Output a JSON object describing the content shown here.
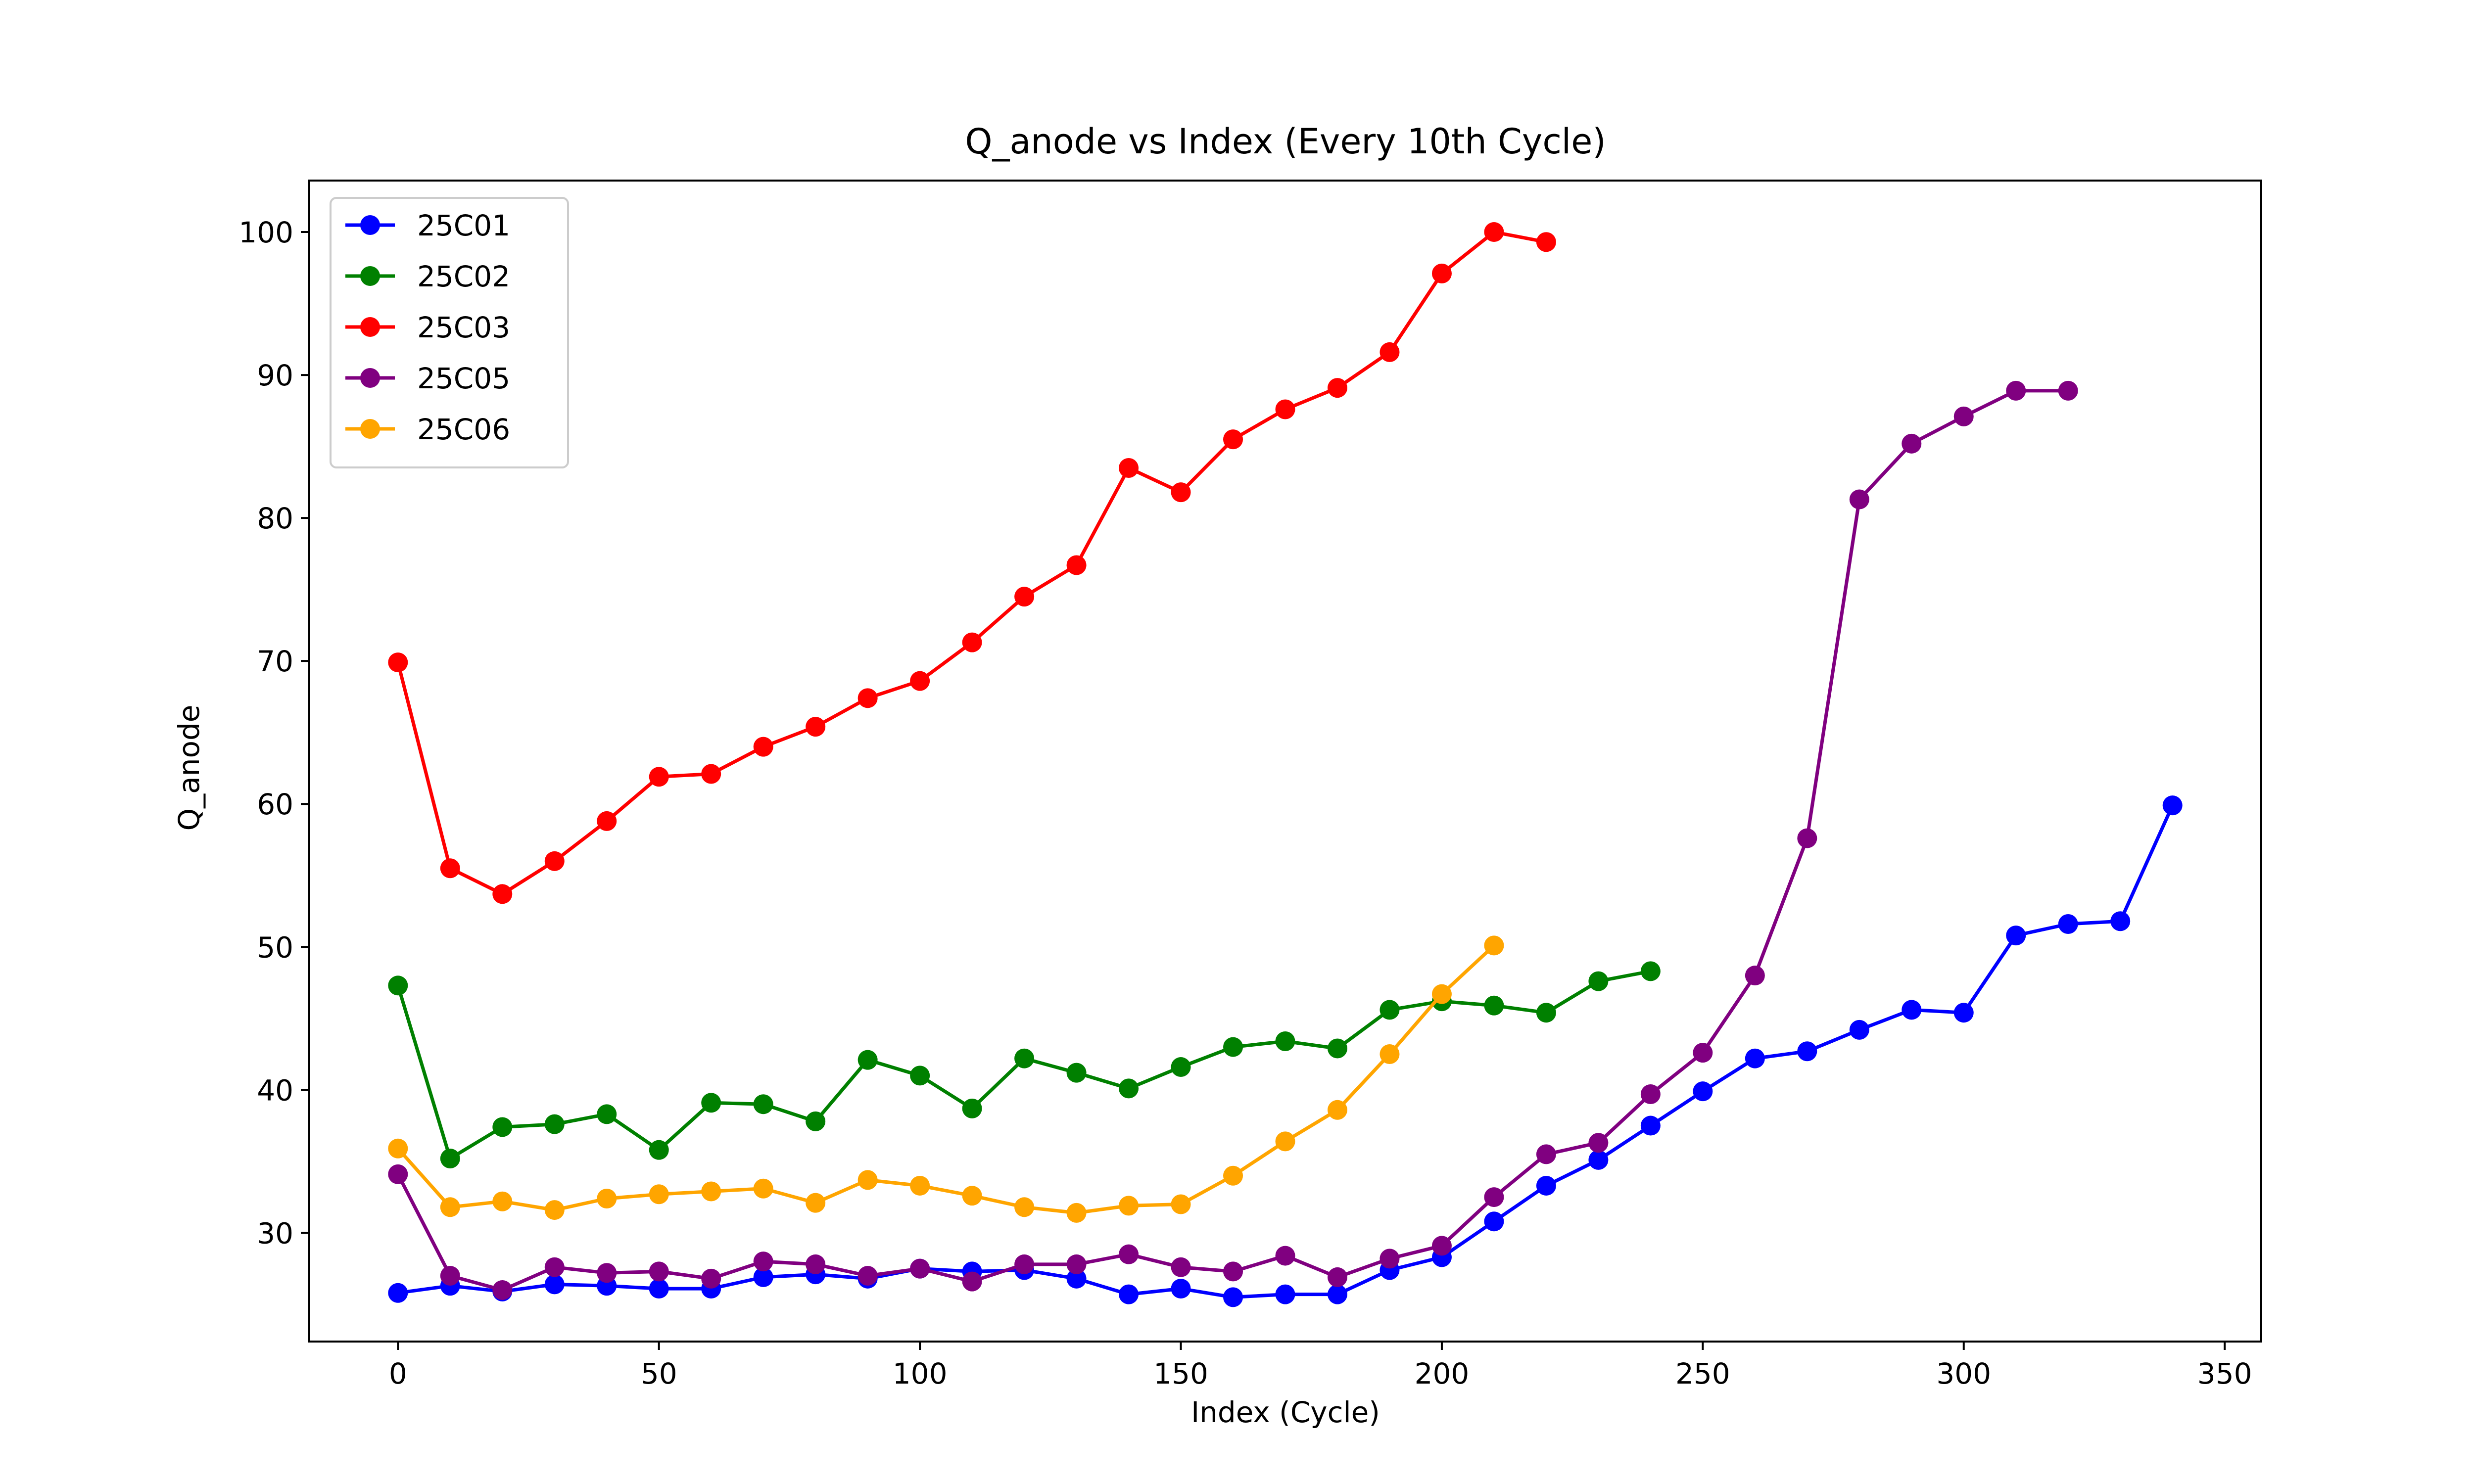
{
  "chart_data": {
    "type": "line",
    "title": "Q_anode vs Index (Every 10th Cycle)",
    "xlabel": "Index (Cycle)",
    "ylabel": "Q_anode",
    "xlim": [
      -17,
      357
    ],
    "ylim": [
      22.4,
      103.6
    ],
    "xticks": [
      0,
      50,
      100,
      150,
      200,
      250,
      300,
      350
    ],
    "yticks": [
      30,
      40,
      50,
      60,
      70,
      80,
      90,
      100
    ],
    "grid": false,
    "legend_position": "top-left",
    "series": [
      {
        "name": "25C01",
        "color": "#0000ff",
        "x": [
          0,
          10,
          20,
          30,
          40,
          50,
          60,
          70,
          80,
          90,
          100,
          110,
          120,
          130,
          140,
          150,
          160,
          170,
          180,
          190,
          200,
          210,
          220,
          230,
          240,
          250,
          260,
          270,
          280,
          290,
          300,
          310,
          320,
          330,
          340
        ],
        "y": [
          25.8,
          26.3,
          25.9,
          26.4,
          26.3,
          26.1,
          26.1,
          26.9,
          27.1,
          26.8,
          27.5,
          27.3,
          27.4,
          26.8,
          25.7,
          26.1,
          25.5,
          25.7,
          25.7,
          27.4,
          28.3,
          30.8,
          33.3,
          35.1,
          37.5,
          39.9,
          42.2,
          42.7,
          44.2,
          45.6,
          45.4,
          50.8,
          51.6,
          51.8,
          59.9
        ]
      },
      {
        "name": "25C02",
        "color": "#008000",
        "x": [
          0,
          10,
          20,
          30,
          40,
          50,
          60,
          70,
          80,
          90,
          100,
          110,
          120,
          130,
          140,
          150,
          160,
          170,
          180,
          190,
          200,
          210,
          220,
          230,
          240
        ],
        "y": [
          47.3,
          35.2,
          37.4,
          37.6,
          38.3,
          35.8,
          39.1,
          39.0,
          37.8,
          42.1,
          41.0,
          38.7,
          42.2,
          41.2,
          40.1,
          41.6,
          43.0,
          43.4,
          42.9,
          45.6,
          46.2,
          45.9,
          45.4,
          47.6,
          48.3
        ]
      },
      {
        "name": "25C03",
        "color": "#ff0000",
        "x": [
          0,
          10,
          20,
          30,
          40,
          50,
          60,
          70,
          80,
          90,
          100,
          110,
          120,
          130,
          140,
          150,
          160,
          170,
          180,
          190,
          200,
          210,
          220
        ],
        "y": [
          69.9,
          55.5,
          53.7,
          56.0,
          58.8,
          61.9,
          62.1,
          64.0,
          65.4,
          67.4,
          68.6,
          71.3,
          74.5,
          76.7,
          83.5,
          81.8,
          85.5,
          87.6,
          89.1,
          91.6,
          97.1,
          100.0,
          99.3
        ]
      },
      {
        "name": "25C05",
        "color": "#800080",
        "x": [
          0,
          10,
          20,
          30,
          40,
          50,
          60,
          70,
          80,
          90,
          100,
          110,
          120,
          130,
          140,
          150,
          160,
          170,
          180,
          190,
          200,
          210,
          220,
          230,
          240,
          250,
          260,
          270,
          280,
          290,
          300,
          310,
          320
        ],
        "y": [
          34.1,
          27.0,
          26.0,
          27.6,
          27.2,
          27.3,
          26.8,
          28.0,
          27.8,
          27.0,
          27.5,
          26.6,
          27.8,
          27.8,
          28.5,
          27.6,
          27.3,
          28.4,
          26.9,
          28.2,
          29.1,
          32.5,
          35.5,
          36.3,
          39.7,
          42.6,
          48.0,
          57.6,
          81.3,
          85.2,
          87.1,
          88.9,
          88.9
        ]
      },
      {
        "name": "25C06",
        "color": "#ffa500",
        "x": [
          0,
          10,
          20,
          30,
          40,
          50,
          60,
          70,
          80,
          90,
          100,
          110,
          120,
          130,
          140,
          150,
          160,
          170,
          180,
          190,
          200,
          210
        ],
        "y": [
          35.9,
          31.8,
          32.2,
          31.6,
          32.4,
          32.7,
          32.9,
          33.1,
          32.1,
          33.7,
          33.3,
          32.6,
          31.8,
          31.4,
          31.9,
          32.0,
          34.0,
          36.4,
          38.6,
          42.5,
          46.7,
          50.1
        ]
      }
    ]
  }
}
